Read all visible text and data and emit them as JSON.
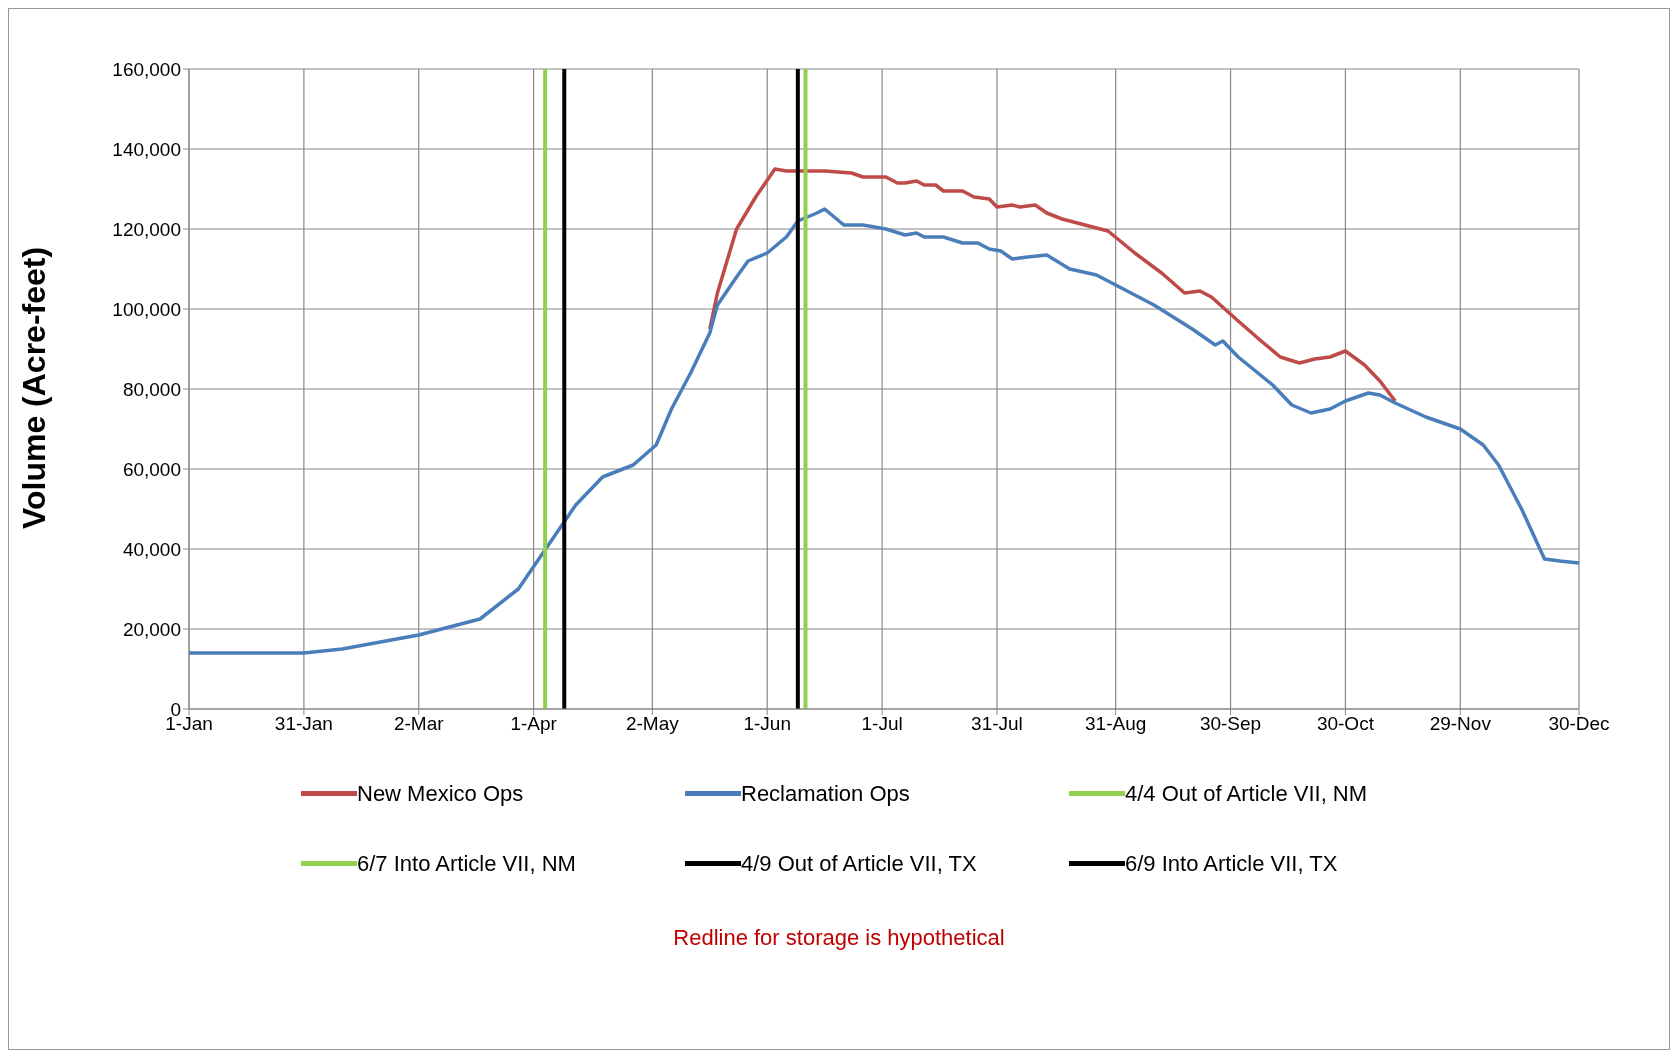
{
  "chart_data": {
    "type": "line",
    "ylabel": "Volume (Acre-feet)",
    "xlim": [
      "--01-01",
      "--12-30"
    ],
    "xticks": [
      {
        "value": "--01-01",
        "label": "1-Jan"
      },
      {
        "value": "--01-31",
        "label": "31-Jan"
      },
      {
        "value": "--03-02",
        "label": "2-Mar"
      },
      {
        "value": "--04-01",
        "label": "1-Apr"
      },
      {
        "value": "--05-02",
        "label": "2-May"
      },
      {
        "value": "--06-01",
        "label": "1-Jun"
      },
      {
        "value": "--07-01",
        "label": "1-Jul"
      },
      {
        "value": "--07-31",
        "label": "31-Jul"
      },
      {
        "value": "--08-31",
        "label": "31-Aug"
      },
      {
        "value": "--09-30",
        "label": "30-Sep"
      },
      {
        "value": "--10-30",
        "label": "30-Oct"
      },
      {
        "value": "--11-29",
        "label": "29-Nov"
      },
      {
        "value": "--12-30",
        "label": "30-Dec"
      }
    ],
    "ylim": [
      0,
      160000
    ],
    "yticks": [
      {
        "value": 0,
        "label": "0"
      },
      {
        "value": 20000,
        "label": "20,000"
      },
      {
        "value": 40000,
        "label": "40,000"
      },
      {
        "value": 60000,
        "label": "60,000"
      },
      {
        "value": 80000,
        "label": "80,000"
      },
      {
        "value": 100000,
        "label": "100,000"
      },
      {
        "value": 120000,
        "label": "120,000"
      },
      {
        "value": 140000,
        "label": "140,000"
      },
      {
        "value": 160000,
        "label": "160,000"
      }
    ],
    "series": [
      {
        "name": "New Mexico Ops",
        "color": "#be4b48",
        "x": [
          "--05-17",
          "--05-19",
          "--05-24",
          "--05-29",
          "--06-03",
          "--06-06",
          "--06-16",
          "--06-23",
          "--06-26",
          "--07-02",
          "--07-05",
          "--07-07",
          "--07-10",
          "--07-12",
          "--07-15",
          "--07-17",
          "--07-22",
          "--07-25",
          "--07-29",
          "--07-31",
          "--08-04",
          "--08-06",
          "--08-10",
          "--08-13",
          "--08-17",
          "--08-23",
          "--08-29",
          "--09-05",
          "--09-12",
          "--09-18",
          "--09-22",
          "--09-25",
          "--10-02",
          "--10-08",
          "--10-13",
          "--10-18",
          "--10-22",
          "--10-26",
          "--10-30",
          "--11-04",
          "--11-08",
          "--11-12"
        ],
        "values": [
          95000,
          104000,
          120000,
          128000,
          135000,
          134500,
          134500,
          134000,
          133000,
          133000,
          131500,
          131500,
          132000,
          131000,
          131000,
          129500,
          129500,
          128000,
          127500,
          125500,
          126000,
          125500,
          126000,
          124000,
          122500,
          121000,
          119500,
          114000,
          109000,
          104000,
          104500,
          103000,
          97000,
          92000,
          88000,
          86500,
          87500,
          88000,
          89500,
          86000,
          82000,
          77000
        ]
      },
      {
        "name": "Reclamation Ops",
        "color": "#4a7ebb",
        "x": [
          "--01-01",
          "--01-31",
          "--02-10",
          "--03-02",
          "--03-18",
          "--03-28",
          "--04-02",
          "--04-07",
          "--04-12",
          "--04-19",
          "--04-27",
          "--05-03",
          "--05-07",
          "--05-12",
          "--05-17",
          "--05-19",
          "--05-24",
          "--05-27",
          "--06-01",
          "--06-06",
          "--06-09",
          "--06-14",
          "--06-16",
          "--06-21",
          "--06-26",
          "--07-02",
          "--07-07",
          "--07-10",
          "--07-12",
          "--07-17",
          "--07-22",
          "--07-26",
          "--07-29",
          "--08-01",
          "--08-04",
          "--08-08",
          "--08-13",
          "--08-19",
          "--08-26",
          "--08-31",
          "--09-10",
          "--09-20",
          "--09-26",
          "--09-28",
          "--10-02",
          "--10-11",
          "--10-16",
          "--10-21",
          "--10-26",
          "--10-30",
          "--11-05",
          "--11-08",
          "--11-12",
          "--11-20",
          "--11-29",
          "--12-05",
          "--12-09",
          "--12-15",
          "--12-21",
          "--12-25",
          "--12-30"
        ],
        "values": [
          14000,
          14000,
          15000,
          18500,
          22500,
          30000,
          37000,
          44000,
          51000,
          58000,
          61000,
          66000,
          75000,
          84000,
          94000,
          101000,
          108000,
          112000,
          114000,
          118000,
          122000,
          124000,
          125000,
          121000,
          121000,
          120000,
          118500,
          119000,
          118000,
          118000,
          116500,
          116500,
          115000,
          114500,
          112500,
          113000,
          113500,
          110000,
          108500,
          106000,
          101000,
          95000,
          91000,
          92000,
          88000,
          81000,
          76000,
          74000,
          75000,
          77000,
          79000,
          78500,
          76500,
          73000,
          70000,
          66000,
          61000,
          50000,
          37500,
          37000,
          36500
        ]
      }
    ],
    "ref_lines": [
      {
        "axis": "x",
        "value": "--04-04",
        "label": "4/4 Out of Article VII, NM",
        "color": "#92d050"
      },
      {
        "axis": "x",
        "value": "--06-11",
        "label": "6/7 Into Article VII, NM",
        "color": "#92d050"
      },
      {
        "axis": "x",
        "value": "--04-09",
        "label": "4/9 Out of Article VII, TX",
        "color": "#000000"
      },
      {
        "axis": "x",
        "value": "--06-09",
        "label": "6/9 Into Article VII, TX",
        "color": "#000000"
      }
    ],
    "annotations": [
      "Redline for storage is hypothetical"
    ],
    "grid": true,
    "legend": "bottom",
    "marker": "none",
    "line_style": "solid"
  }
}
